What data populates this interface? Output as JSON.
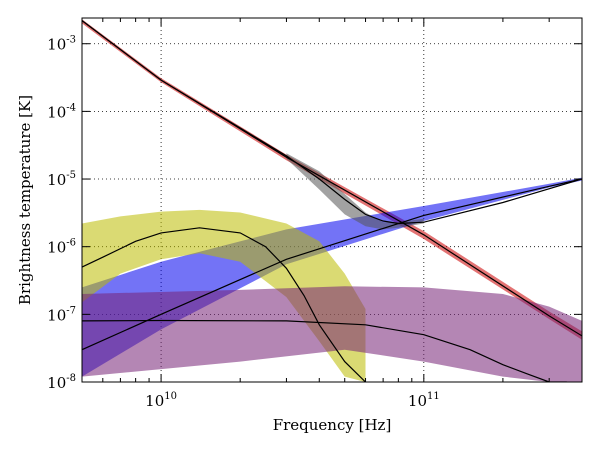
{
  "chart_data": {
    "type": "line",
    "title": "",
    "xlabel": "Frequency [Hz]",
    "ylabel": "Brightness temperature [K]",
    "xscale": "log",
    "yscale": "log",
    "xlim": [
      5000000000.0,
      400000000000.0
    ],
    "ylim": [
      1e-08,
      0.0024
    ],
    "grid": "dotted",
    "legend": "none",
    "x_ticks": [
      {
        "value": 10000000000.0,
        "base": "10",
        "exp": "10"
      },
      {
        "value": 100000000000.0,
        "base": "10",
        "exp": "11"
      }
    ],
    "y_ticks": [
      {
        "value": 0.001,
        "base": "10",
        "exp": "-3"
      },
      {
        "value": 0.0001,
        "base": "10",
        "exp": "-4"
      },
      {
        "value": 1e-05,
        "base": "10",
        "exp": "-5"
      },
      {
        "value": 1e-06,
        "base": "10",
        "exp": "-6"
      },
      {
        "value": 1e-07,
        "base": "10",
        "exp": "-7"
      },
      {
        "value": 1e-08,
        "base": "10",
        "exp": "-8"
      }
    ],
    "series": [
      {
        "kind": "band",
        "color": "#cc0000",
        "x": [
          5000000000.0,
          10000000000.0,
          30000000000.0,
          100000000000.0,
          300000000000.0,
          400000000000.0
        ],
        "low": [
          0.002,
          0.00027,
          1.9e-05,
          1.3e-06,
          8.5e-08,
          4.2e-08
        ],
        "high": [
          0.0023,
          0.00031,
          2.3e-05,
          1.7e-06,
          1.1e-07,
          5.6e-08
        ]
      },
      {
        "kind": "band",
        "color": "#0000ee",
        "x": [
          5000000000.0,
          10000000000.0,
          30000000000.0,
          100000000000.0,
          300000000000.0,
          400000000000.0
        ],
        "low": [
          1.2e-08,
          6e-08,
          5.5e-07,
          2.4e-06,
          7.5e-06,
          9.5e-06
        ],
        "high": [
          2.5e-07,
          6e-07,
          1.8e-06,
          4e-06,
          8.5e-06,
          1.05e-05
        ]
      },
      {
        "kind": "band",
        "color": "#bbbb00",
        "x": [
          5000000000.0,
          7000000000.0,
          10000000000.0,
          14000000000.0,
          20000000000.0,
          30000000000.0,
          40000000000.0,
          50000000000.0,
          60000000000.0
        ],
        "low": [
          1.5e-07,
          4e-07,
          6.5e-07,
          8e-07,
          6e-07,
          1.8e-07,
          4e-08,
          1.2e-08,
          1e-08
        ],
        "high": [
          2.2e-06,
          2.8e-06,
          3.3e-06,
          3.5e-06,
          3.2e-06,
          2.2e-06,
          1.2e-06,
          4e-07,
          1.2e-07
        ]
      },
      {
        "kind": "band",
        "color": "#772277",
        "x": [
          5000000000.0,
          20000000000.0,
          50000000000.0,
          100000000000.0,
          200000000000.0,
          300000000000.0,
          400000000000.0
        ],
        "low": [
          1.2e-08,
          2e-08,
          3e-08,
          2e-08,
          1.2e-08,
          1e-08,
          1e-08
        ],
        "high": [
          2e-07,
          2.3e-07,
          2.6e-07,
          2.5e-07,
          2e-07,
          1.3e-07,
          8e-08
        ]
      },
      {
        "kind": "band",
        "color": "#555555",
        "x": [
          30000000000.0,
          40000000000.0,
          50000000000.0,
          60000000000.0,
          70000000000.0,
          80000000000.0,
          100000000000.0
        ],
        "low": [
          2e-05,
          7e-06,
          3e-06,
          2e-06,
          1.8e-06,
          1.9e-06,
          2.2e-06
        ],
        "high": [
          2.4e-05,
          1.3e-05,
          6e-06,
          3.2e-06,
          2.3e-06,
          2.3e-06,
          2.6e-06
        ]
      },
      {
        "kind": "line",
        "color": "#000000",
        "x": [
          5000000000.0,
          10000000000.0,
          30000000000.0,
          100000000000.0,
          300000000000.0,
          400000000000.0
        ],
        "y": [
          0.0022,
          0.00029,
          2.1e-05,
          1.5e-06,
          9.5e-08,
          4.8e-08
        ]
      },
      {
        "kind": "line",
        "color": "#000000",
        "x": [
          5000000000.0,
          10000000000.0,
          30000000000.0,
          100000000000.0,
          300000000000.0,
          400000000000.0
        ],
        "y": [
          3e-08,
          1e-07,
          6.5e-07,
          2.9e-06,
          7.8e-06,
          1e-05
        ]
      },
      {
        "kind": "line",
        "color": "#000000",
        "x": [
          5000000000.0,
          6000000000.0,
          8000000000.0,
          10000000000.0,
          14000000000.0,
          20000000000.0,
          25000000000.0,
          30000000000.0,
          35000000000.0,
          40000000000.0,
          50000000000.0,
          60000000000.0
        ],
        "y": [
          5e-07,
          7e-07,
          1.2e-06,
          1.6e-06,
          1.9e-06,
          1.6e-06,
          1e-06,
          4.8e-07,
          1.9e-07,
          7e-08,
          2e-08,
          1e-08
        ]
      },
      {
        "kind": "line",
        "color": "#000000",
        "x": [
          5000000000.0,
          10000000000.0,
          30000000000.0,
          60000000000.0,
          100000000000.0,
          150000000000.0,
          200000000000.0,
          250000000000.0,
          300000000000.0,
          350000000000.0
        ],
        "y": [
          8e-08,
          8.1e-08,
          8e-08,
          7e-08,
          5e-08,
          3e-08,
          1.8e-08,
          1.3e-08,
          1e-08,
          1e-08
        ]
      },
      {
        "kind": "line",
        "color": "#000000",
        "x": [
          5000000000.0,
          10000000000.0,
          30000000000.0,
          40000000000.0,
          50000000000.0,
          60000000000.0,
          70000000000.0,
          80000000000.0,
          100000000000.0,
          200000000000.0,
          400000000000.0
        ],
        "y": [
          0.0022,
          0.00029,
          2.2e-05,
          1e-05,
          5e-06,
          3e-06,
          2.4e-06,
          2.2e-06,
          2.3e-06,
          4.5e-06,
          1e-05
        ]
      }
    ]
  }
}
